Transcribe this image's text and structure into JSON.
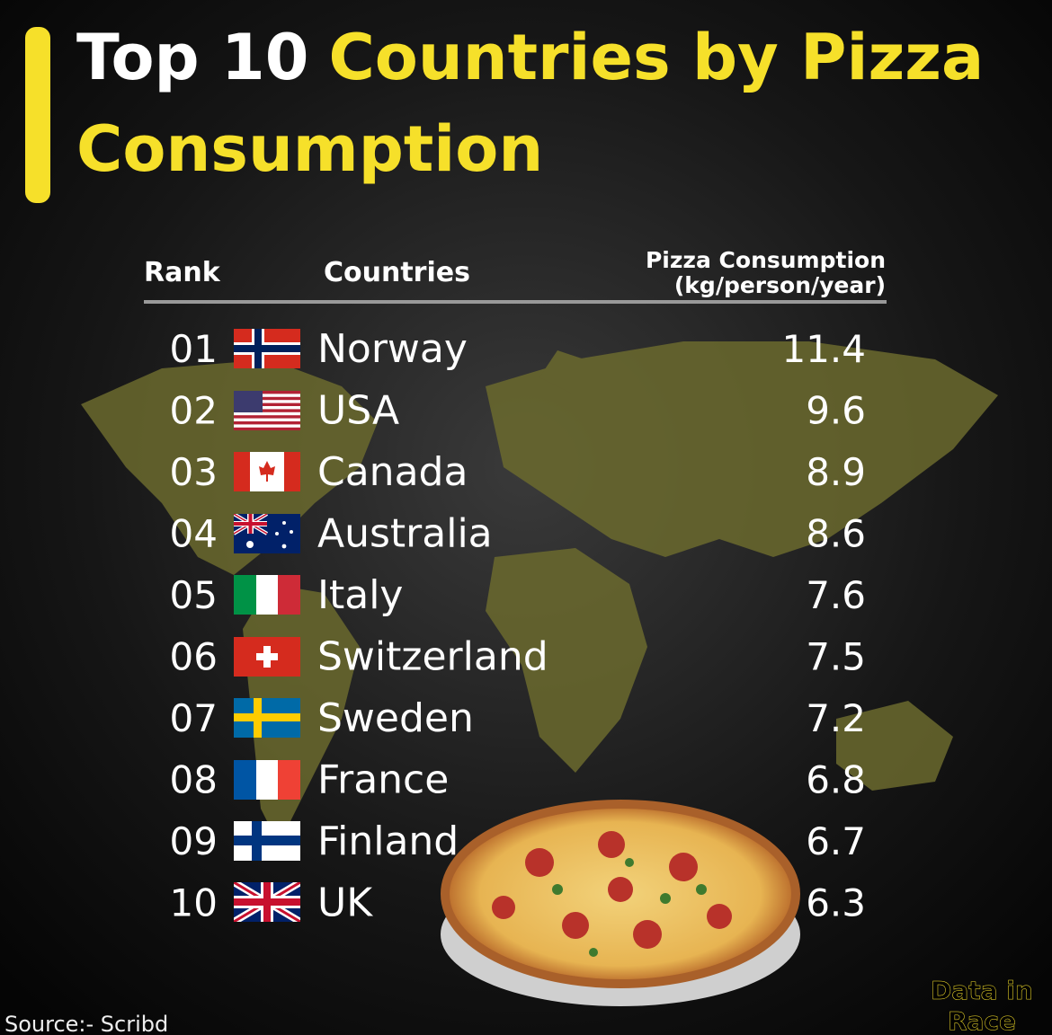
{
  "header": {
    "title": [
      "Top 10",
      "Countries by Pizza Consumption"
    ]
  },
  "table": {
    "columns": [
      "Rank",
      "Countries",
      [
        "Pizza Consumption",
        "(kg/person/year)"
      ]
    ],
    "rows": [
      [
        "01",
        "Norway",
        11.4
      ],
      [
        "02",
        "USA",
        9.6
      ],
      [
        "03",
        "Canada",
        8.9
      ],
      [
        "04",
        "Australia",
        8.6
      ],
      [
        "05",
        "Italy",
        7.6
      ],
      [
        "06",
        "Switzerland",
        7.5
      ],
      [
        "07",
        "Sweden",
        7.2
      ],
      [
        "08",
        "France",
        6.8
      ],
      [
        "09",
        "Finland",
        6.7
      ],
      [
        "10",
        "UK",
        6.3
      ]
    ]
  },
  "footer": {
    "source": "Source:- Scribd",
    "logo": [
      "Data in",
      "Race"
    ]
  }
}
